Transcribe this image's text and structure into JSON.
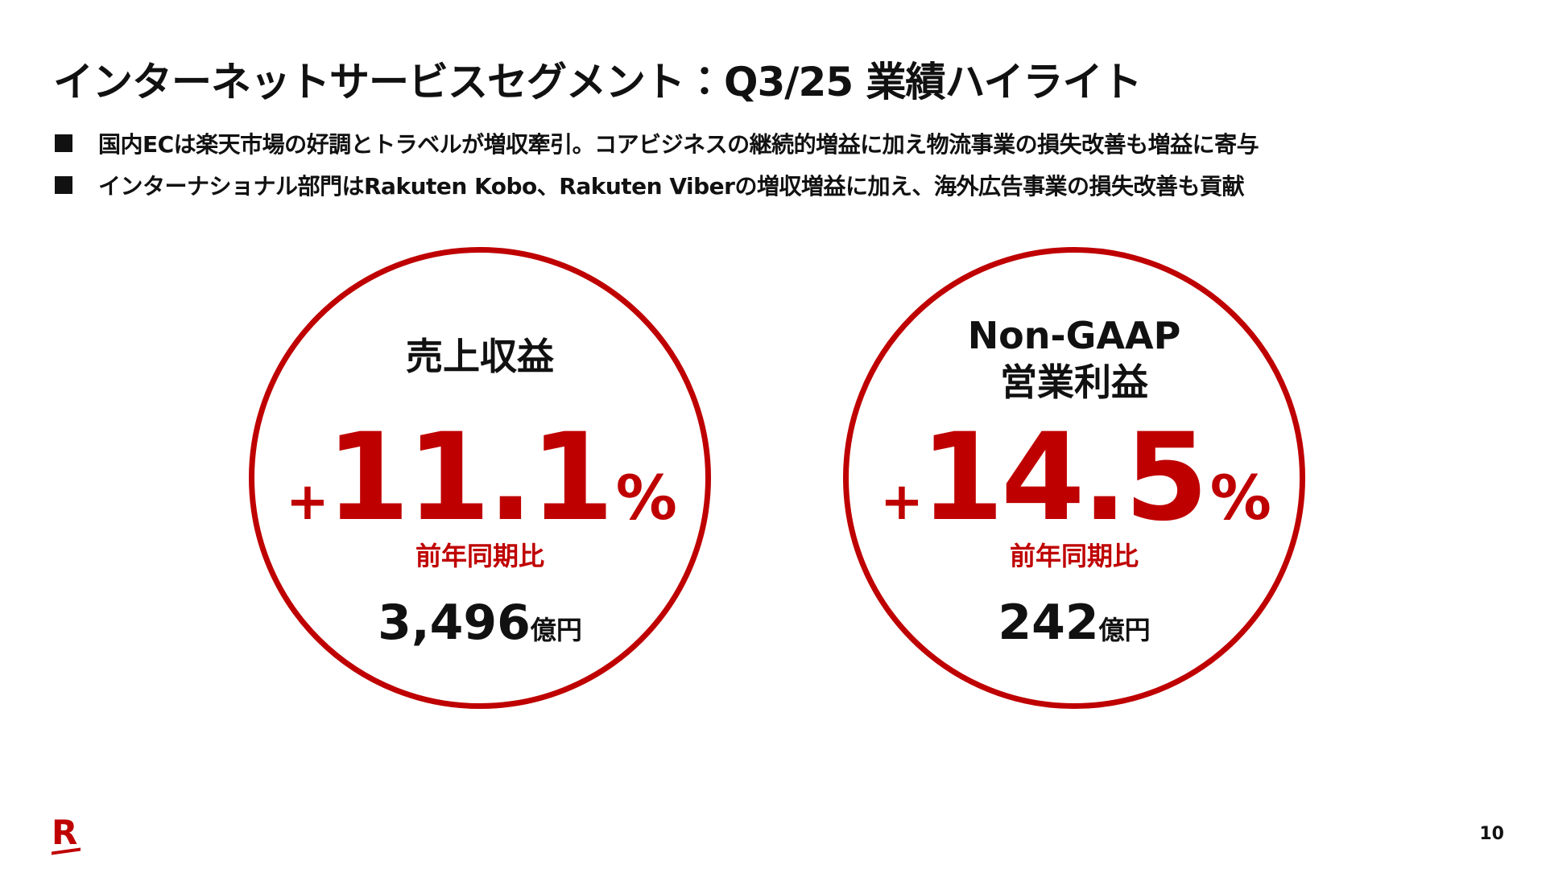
{
  "header": {
    "title": "インターネットサービスセグメント：Q3/25 業績ハイライト"
  },
  "bullets": [
    "国内ECは楽天市場の好調とトラベルが増収牽引。コアビジネスの継続的増益に加え物流事業の損失改善も増益に寄与",
    "インターナショナル部門はRakuten Kobo、Rakuten Viberの増収増益に加え、海外広告事業の損失改善も貢献"
  ],
  "cards": [
    {
      "label": [
        "売上収益"
      ],
      "sign": "+",
      "number": "11.1",
      "unit": "%",
      "comparison": "前年同期比",
      "amount": "3,496",
      "amount_unit": "億円"
    },
    {
      "label": [
        "Non-GAAP",
        "営業利益"
      ],
      "sign": "+",
      "number": "14.5",
      "unit": "%",
      "comparison": "前年同期比",
      "amount": "242",
      "amount_unit": "億円"
    }
  ],
  "footer": {
    "logo": "R",
    "page": "10"
  }
}
